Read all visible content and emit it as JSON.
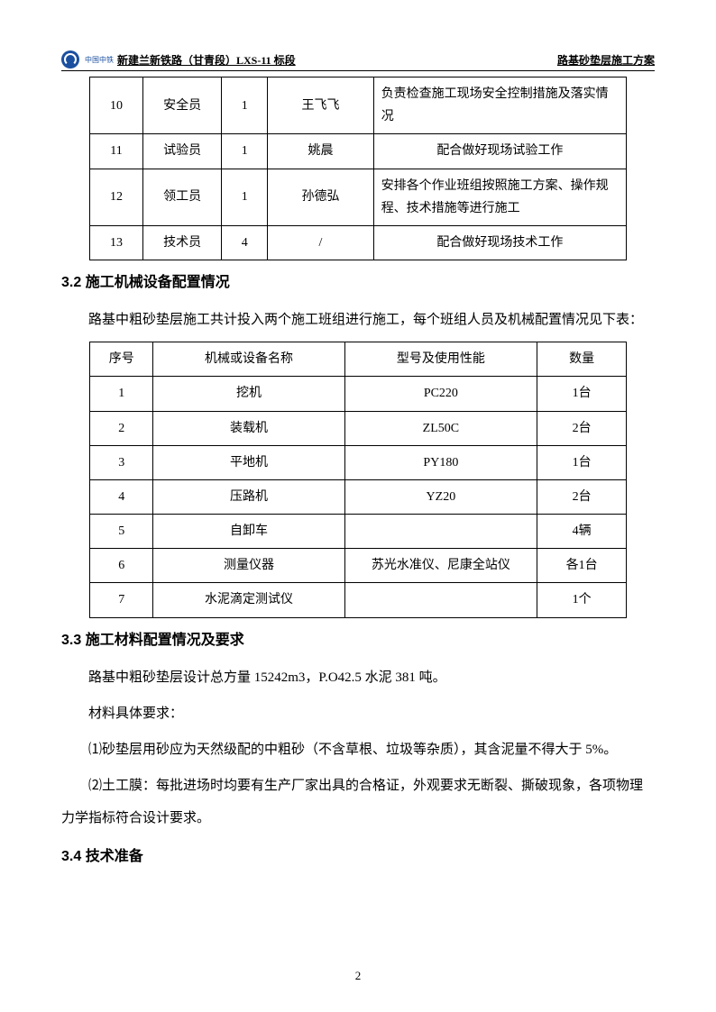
{
  "header": {
    "logo_text": "中国中铁",
    "left": "新建兰新铁路（甘青段）LXS-11 标段",
    "right": "路基砂垫层施工方案"
  },
  "table1_rows": [
    {
      "no": "10",
      "role": "安全员",
      "count": "1",
      "name": "王飞飞",
      "duty": "负责检查施工现场安全控制措施及落实情况",
      "center": false
    },
    {
      "no": "11",
      "role": "试验员",
      "count": "1",
      "name": "姚晨",
      "duty": "配合做好现场试验工作",
      "center": true
    },
    {
      "no": "12",
      "role": "领工员",
      "count": "1",
      "name": "孙德弘",
      "duty": "安排各个作业班组按照施工方案、操作规程、技术措施等进行施工",
      "center": false
    },
    {
      "no": "13",
      "role": "技术员",
      "count": "4",
      "name": "/",
      "duty": "配合做好现场技术工作",
      "center": true
    }
  ],
  "sections": {
    "s32_title": "3.2 施工机械设备配置情况",
    "s32_para": "路基中粗砂垫层施工共计投入两个施工班组进行施工，每个班组人员及机械配置情况见下表：",
    "s33_title": "3.3  施工材料配置情况及要求",
    "s33_p1": "路基中粗砂垫层设计总方量 15242m3，P.O42.5 水泥 381 吨。",
    "s33_p2": "材料具体要求：",
    "s33_li1": "⑴砂垫层用砂应为天然级配的中粗砂（不含草根、垃圾等杂质），其含泥量不得大于 5%。",
    "s33_li2": "⑵土工膜：每批进场时均要有生产厂家出具的合格证，外观要求无断裂、撕破现象，各项物理力学指标符合设计要求。",
    "s34_title": "3.4 技术准备"
  },
  "table2": {
    "headers": [
      "序号",
      "机械或设备名称",
      "型号及使用性能",
      "数量"
    ],
    "rows": [
      [
        "1",
        "挖机",
        "PC220",
        "1台"
      ],
      [
        "2",
        "装载机",
        "ZL50C",
        "2台"
      ],
      [
        "3",
        "平地机",
        "PY180",
        "1台"
      ],
      [
        "4",
        "压路机",
        "YZ20",
        "2台"
      ],
      [
        "5",
        "自卸车",
        "",
        "4辆"
      ],
      [
        "6",
        "测量仪器",
        "苏光水准仪、尼康全站仪",
        "各1台"
      ],
      [
        "7",
        "水泥滴定测试仪",
        "",
        "1个"
      ]
    ]
  },
  "page_number": "2"
}
